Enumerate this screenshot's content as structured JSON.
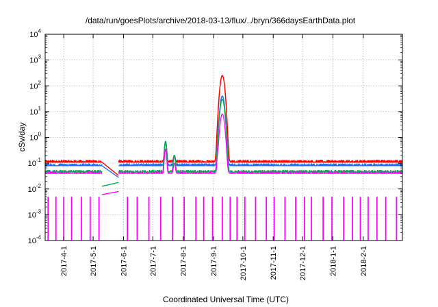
{
  "chart_data": {
    "type": "line",
    "title": "/data/run/goesPlots/archive/2018-03-13/flux/../bryn/366daysEarthData.plot",
    "xlabel": "Coordinated Universal Time (UTC)",
    "ylabel": "cSv/day",
    "yscale": "log",
    "ylim": [
      0.0001,
      10000
    ],
    "xlim": [
      "2017-03-13",
      "2018-03-13"
    ],
    "y_ticks": [
      {
        "base": "10",
        "exp": "-4"
      },
      {
        "base": "10",
        "exp": "-3"
      },
      {
        "base": "10",
        "exp": "-2"
      },
      {
        "base": "10",
        "exp": "-1"
      },
      {
        "base": "10",
        "exp": "0"
      },
      {
        "base": "10",
        "exp": "1"
      },
      {
        "base": "10",
        "exp": "2"
      },
      {
        "base": "10",
        "exp": "3"
      },
      {
        "base": "10",
        "exp": "4"
      }
    ],
    "x_ticks": [
      "2017-4-1",
      "2017-5-1",
      "2017-6-1",
      "2017-7-1",
      "2017-8-1",
      "2017-9-1",
      "2017-10-1",
      "2017-11-1",
      "2017-12-1",
      "2018-1-1",
      "2018-2-1"
    ],
    "grid": true,
    "data_gap": [
      "2017-05-10",
      "2017-05-27"
    ],
    "series": [
      {
        "color": "#ff0000",
        "baseline": 0.11,
        "peak": 250,
        "peak_date": "2017-09-10"
      },
      {
        "color": "#1e6fff",
        "baseline": 0.08,
        "peak": 40,
        "peak_date": "2017-09-10"
      },
      {
        "color": "#00b050",
        "baseline": 0.045,
        "peak": 30,
        "peak_date": "2017-09-10"
      },
      {
        "color": "#ff00ff",
        "baseline": 0.04,
        "floor": 0.005,
        "peak": 8,
        "peak_date": "2017-09-10"
      }
    ],
    "events": [
      {
        "date": "2017-07-14",
        "value": 0.7
      },
      {
        "date": "2017-07-23",
        "value": 0.2
      },
      {
        "date": "2017-09-06",
        "value": 0.8
      },
      {
        "date": "2017-09-10",
        "value": 250
      }
    ]
  }
}
